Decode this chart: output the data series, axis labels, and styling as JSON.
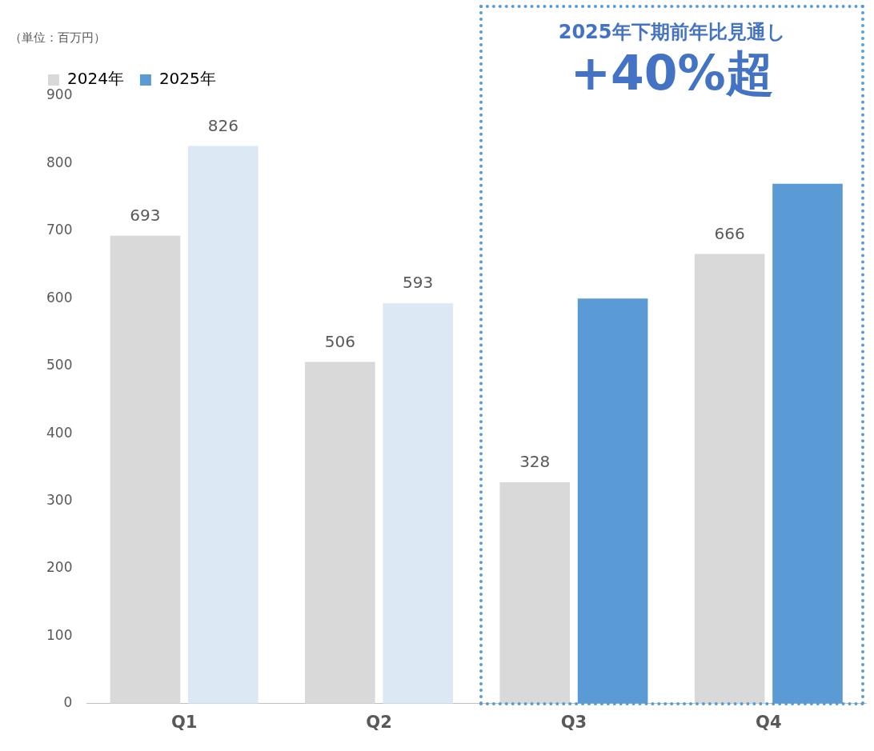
{
  "chart_data": {
    "type": "bar",
    "ylabel": "（単位：百万円）",
    "categories": [
      "Q1",
      "Q2",
      "Q3",
      "Q4"
    ],
    "series": [
      {
        "name": "2024年",
        "color": "#d9d9d9",
        "colors": [
          "#d9d9d9",
          "#d9d9d9",
          "#d9d9d9",
          "#d9d9d9"
        ],
        "values": [
          693,
          506,
          328,
          666
        ],
        "value_labels": [
          "693",
          "506",
          "328",
          "666"
        ]
      },
      {
        "name": "2025年",
        "color": "#5b9bd5",
        "colors": [
          "#dde8f5",
          "#dde8f5",
          "#5b9bd5",
          "#5b9bd5"
        ],
        "values": [
          826,
          593,
          600,
          770
        ],
        "value_labels": [
          "826",
          "593",
          null,
          null
        ]
      }
    ],
    "ylim": [
      0,
      900
    ],
    "yticks": [
      0,
      100,
      200,
      300,
      400,
      500,
      600,
      700,
      800,
      900
    ],
    "grid": false,
    "legend": "top",
    "annotations": [
      "2025年下期前年比見通し",
      "+40%超"
    ]
  }
}
